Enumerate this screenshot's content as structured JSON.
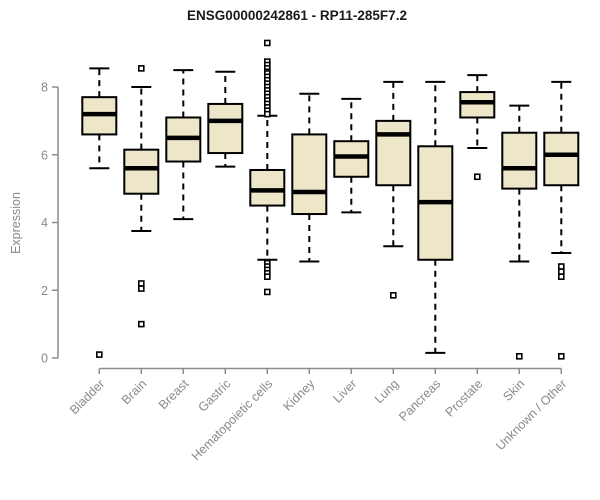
{
  "chart_data": {
    "type": "boxplot",
    "title": "ENSG00000242861 - RP11-285F7.2",
    "ylabel": "Expression",
    "xlabel": "",
    "ylim": [
      0,
      9.4
    ],
    "yticks": [
      0,
      2,
      4,
      6,
      8
    ],
    "grid": false,
    "legend": "none",
    "categories": [
      "Bladder",
      "Brain",
      "Breast",
      "Gastric",
      "Hematopoietic cells",
      "Kidney",
      "Liver",
      "Lung",
      "Pancreas",
      "Prostate",
      "Skin",
      "Unknown / Other"
    ],
    "series": [
      {
        "category": "Bladder",
        "whislo": 5.6,
        "q1": 6.6,
        "med": 7.2,
        "q3": 7.7,
        "whishi": 8.55,
        "outliers": [
          0.1
        ]
      },
      {
        "category": "Brain",
        "whislo": 3.75,
        "q1": 4.85,
        "med": 5.6,
        "q3": 6.15,
        "whishi": 8.0,
        "outliers": [
          8.55,
          2.2,
          2.05,
          1.0
        ]
      },
      {
        "category": "Breast",
        "whislo": 4.1,
        "q1": 5.8,
        "med": 6.5,
        "q3": 7.1,
        "whishi": 8.5,
        "outliers": []
      },
      {
        "category": "Gastric",
        "whislo": 5.65,
        "q1": 6.05,
        "med": 7.0,
        "q3": 7.5,
        "whishi": 8.45,
        "outliers": []
      },
      {
        "category": "Hematopoietic cells",
        "whislo": 2.9,
        "q1": 4.5,
        "med": 4.95,
        "q3": 5.55,
        "whishi": 7.15,
        "outliers": [
          9.3,
          8.75,
          8.65,
          8.55,
          8.45,
          8.4,
          8.3,
          8.2,
          8.1,
          8.0,
          7.9,
          7.8,
          7.7,
          7.6,
          7.5,
          7.4,
          7.3,
          7.2,
          2.8,
          2.7,
          2.6,
          2.5,
          2.4,
          1.95
        ]
      },
      {
        "category": "Kidney",
        "whislo": 2.85,
        "q1": 4.25,
        "med": 4.9,
        "q3": 6.6,
        "whishi": 7.8,
        "outliers": []
      },
      {
        "category": "Liver",
        "whislo": 4.3,
        "q1": 5.35,
        "med": 5.95,
        "q3": 6.4,
        "whishi": 7.65,
        "outliers": []
      },
      {
        "category": "Lung",
        "whislo": 3.3,
        "q1": 5.1,
        "med": 6.6,
        "q3": 7.0,
        "whishi": 8.15,
        "outliers": [
          1.85
        ]
      },
      {
        "category": "Pancreas",
        "whislo": 0.15,
        "q1": 2.9,
        "med": 4.6,
        "q3": 6.25,
        "whishi": 8.15,
        "outliers": []
      },
      {
        "category": "Prostate",
        "whislo": 6.2,
        "q1": 7.1,
        "med": 7.55,
        "q3": 7.85,
        "whishi": 8.35,
        "outliers": [
          5.35
        ]
      },
      {
        "category": "Skin",
        "whislo": 2.85,
        "q1": 5.0,
        "med": 5.6,
        "q3": 6.65,
        "whishi": 7.45,
        "outliers": [
          0.05
        ]
      },
      {
        "category": "Unknown / Other",
        "whislo": 3.1,
        "q1": 5.1,
        "med": 6.0,
        "q3": 6.65,
        "whishi": 8.15,
        "outliers": [
          2.7,
          2.55,
          2.4,
          0.05
        ]
      }
    ],
    "colors": {
      "box_fill": "#EDE6C8",
      "box_stroke": "#000000",
      "median": "#000000",
      "whisker": "#000000",
      "outlier_stroke": "#000000",
      "axis": "#8C8C8C",
      "tick_label": "#8A8A8A",
      "title": "#1A1A1A",
      "background": "#FFFFFF"
    }
  }
}
